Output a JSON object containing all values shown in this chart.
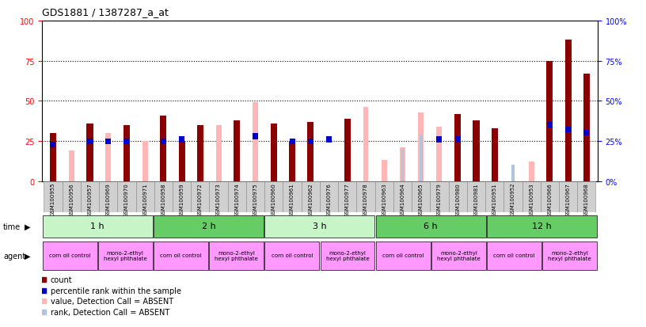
{
  "title": "GDS1881 / 1387287_a_at",
  "samples": [
    "GSM100955",
    "GSM100956",
    "GSM100957",
    "GSM100969",
    "GSM100970",
    "GSM100971",
    "GSM100958",
    "GSM100959",
    "GSM100972",
    "GSM100973",
    "GSM100974",
    "GSM100975",
    "GSM100960",
    "GSM100961",
    "GSM100962",
    "GSM100976",
    "GSM100977",
    "GSM100978",
    "GSM100963",
    "GSM100964",
    "GSM100965",
    "GSM100979",
    "GSM100980",
    "GSM100981",
    "GSM100951",
    "GSM100952",
    "GSM100953",
    "GSM100966",
    "GSM100967",
    "GSM100968"
  ],
  "count_values": [
    30,
    0,
    36,
    0,
    35,
    0,
    41,
    25,
    35,
    0,
    38,
    0,
    36,
    25,
    37,
    0,
    39,
    0,
    0,
    0,
    0,
    0,
    42,
    38,
    33,
    0,
    0,
    75,
    88,
    67
  ],
  "rank_values": [
    23,
    0,
    25,
    25,
    25,
    0,
    25,
    26,
    0,
    0,
    0,
    28,
    0,
    25,
    25,
    26,
    0,
    0,
    0,
    0,
    0,
    26,
    26,
    0,
    0,
    0,
    0,
    35,
    32,
    30
  ],
  "absent_count_values": [
    0,
    19,
    0,
    30,
    0,
    25,
    0,
    0,
    0,
    35,
    0,
    49,
    0,
    0,
    0,
    0,
    0,
    46,
    13,
    21,
    43,
    34,
    0,
    0,
    0,
    0,
    12,
    0,
    0,
    0
  ],
  "absent_rank_values": [
    0,
    0,
    0,
    0,
    22,
    0,
    27,
    0,
    22,
    0,
    25,
    0,
    22,
    0,
    0,
    0,
    25,
    0,
    0,
    20,
    29,
    0,
    0,
    16,
    22,
    10,
    0,
    0,
    0,
    0
  ],
  "time_groups": [
    {
      "label": "1 h",
      "start": 0,
      "end": 6
    },
    {
      "label": "2 h",
      "start": 6,
      "end": 12
    },
    {
      "label": "3 h",
      "start": 12,
      "end": 18
    },
    {
      "label": "6 h",
      "start": 18,
      "end": 24
    },
    {
      "label": "12 h",
      "start": 24,
      "end": 30
    }
  ],
  "agent_groups": [
    {
      "label": "corn oil control",
      "start": 0,
      "end": 3
    },
    {
      "label": "mono-2-ethyl\nhexyl phthalate",
      "start": 3,
      "end": 6
    },
    {
      "label": "corn oil control",
      "start": 6,
      "end": 9
    },
    {
      "label": "mono-2-ethyl\nhexyl phthalate",
      "start": 9,
      "end": 12
    },
    {
      "label": "corn oil control",
      "start": 12,
      "end": 15
    },
    {
      "label": "mono-2-ethyl\nhexyl phthalate",
      "start": 15,
      "end": 18
    },
    {
      "label": "corn oil control",
      "start": 18,
      "end": 21
    },
    {
      "label": "mono-2-ethyl\nhexyl phthalate",
      "start": 21,
      "end": 24
    },
    {
      "label": "corn oil control",
      "start": 24,
      "end": 27
    },
    {
      "label": "mono-2-ethyl\nhexyl phthalate",
      "start": 27,
      "end": 30
    }
  ],
  "ylim": [
    0,
    100
  ],
  "yticks": [
    0,
    25,
    50,
    75,
    100
  ],
  "color_count": "#8B0000",
  "color_rank": "#0000CC",
  "color_absent_count": "#FFB6B6",
  "color_absent_rank": "#B0C4DE",
  "time_color_light": "#c8f5c8",
  "time_color_dark": "#66cc66",
  "agent_color": "#FF99FF",
  "xtick_bg": "#d0d0d0"
}
